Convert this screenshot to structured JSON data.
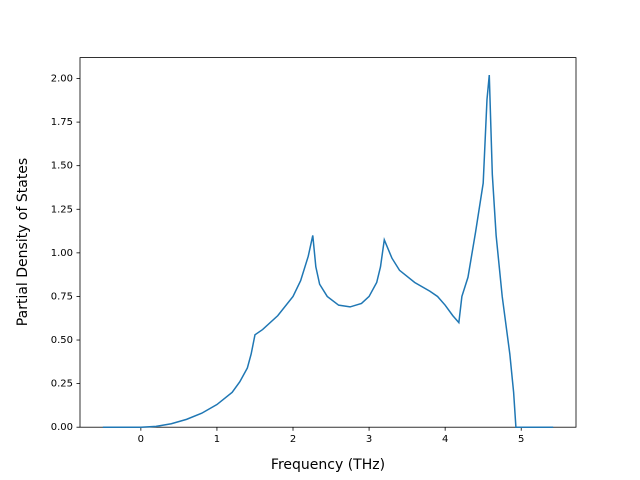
{
  "chart_data": {
    "type": "line",
    "xlabel": "Frequency (THz)",
    "ylabel": "Partial Density of States",
    "x": [
      -0.5,
      0,
      0.2,
      0.4,
      0.6,
      0.8,
      1.0,
      1.2,
      1.3,
      1.4,
      1.45,
      1.5,
      1.6,
      1.8,
      2.0,
      2.1,
      2.2,
      2.26,
      2.3,
      2.35,
      2.45,
      2.6,
      2.75,
      2.9,
      3.0,
      3.1,
      3.15,
      3.2,
      3.3,
      3.4,
      3.6,
      3.8,
      3.9,
      4.0,
      4.1,
      4.18,
      4.22,
      4.3,
      4.4,
      4.5,
      4.55,
      4.58,
      4.62,
      4.67,
      4.75,
      4.85,
      4.9,
      4.93,
      5.42
    ],
    "series": [
      {
        "color": "#1f77b4",
        "values": [
          0,
          0,
          0.005,
          0.02,
          0.045,
          0.08,
          0.13,
          0.2,
          0.26,
          0.34,
          0.42,
          0.53,
          0.56,
          0.64,
          0.75,
          0.84,
          0.98,
          1.1,
          0.92,
          0.82,
          0.75,
          0.7,
          0.69,
          0.71,
          0.75,
          0.83,
          0.92,
          1.075,
          0.97,
          0.9,
          0.83,
          0.78,
          0.75,
          0.7,
          0.64,
          0.6,
          0.75,
          0.86,
          1.12,
          1.4,
          1.88,
          2.02,
          1.45,
          1.1,
          0.75,
          0.42,
          0.2,
          0,
          0
        ]
      }
    ],
    "xlim": [
      -0.8,
      5.72
    ],
    "ylim": [
      0,
      2.12
    ],
    "xticks": [
      0,
      1,
      2,
      3,
      4,
      5
    ],
    "yticks": [
      {
        "value": 0,
        "label": "0.00"
      },
      {
        "value": 0.25,
        "label": "0.25"
      },
      {
        "value": 0.5,
        "label": "0.50"
      },
      {
        "value": 0.75,
        "label": "0.75"
      },
      {
        "value": 1.0,
        "label": "1.00"
      },
      {
        "value": 1.25,
        "label": "1.25"
      },
      {
        "value": 1.5,
        "label": "1.50"
      },
      {
        "value": 1.75,
        "label": "1.75"
      },
      {
        "value": 2.0,
        "label": "2.00"
      }
    ]
  }
}
